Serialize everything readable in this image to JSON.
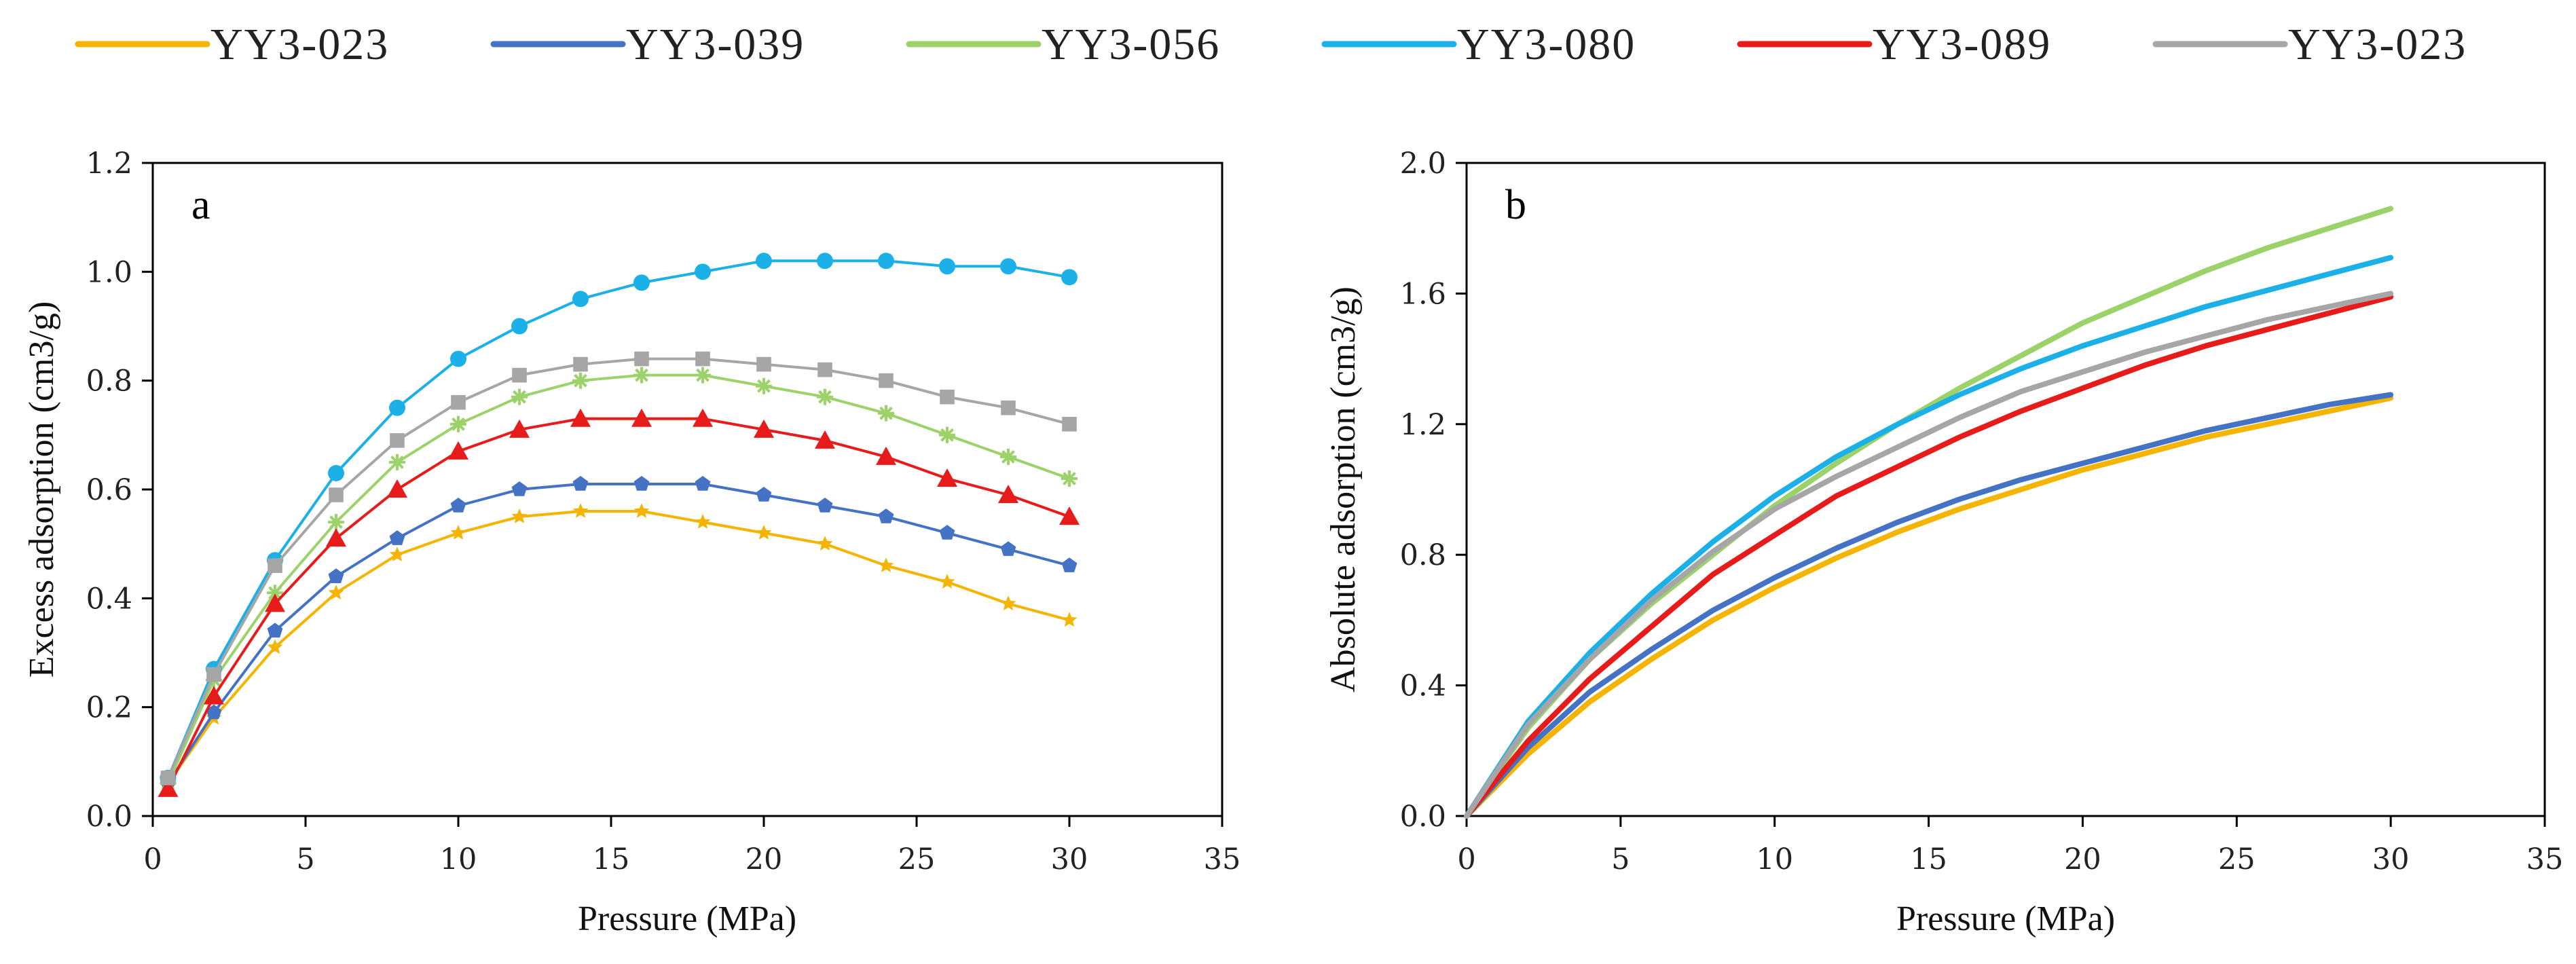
{
  "chart_data": {
    "legend": [
      {
        "name": "YY3-023",
        "color": "#F4B400"
      },
      {
        "name": "YY3-039",
        "color": "#4472C4"
      },
      {
        "name": "YY3-056",
        "color": "#9BD36A"
      },
      {
        "name": "YY3-080",
        "color": "#1CB0E8"
      },
      {
        "name": "YY3-089",
        "color": "#E81B1B"
      },
      {
        "name": "YY3-023",
        "color": "#A6A6A6"
      }
    ],
    "panels": [
      {
        "id": "a",
        "letter": "a",
        "type": "line",
        "xlabel": "Pressure (MPa)",
        "ylabel": "Excess adsorption (cm3/g)",
        "xlim": [
          0,
          35
        ],
        "ylim": [
          0,
          1.2
        ],
        "xticks": [
          "0",
          "5",
          "10",
          "15",
          "20",
          "25",
          "30",
          "35"
        ],
        "yticks": [
          "0.0",
          "0.2",
          "0.4",
          "0.6",
          "0.8",
          "1.0",
          "1.2"
        ],
        "x": [
          0.5,
          2,
          4,
          6,
          8,
          10,
          12,
          14,
          16,
          18,
          20,
          22,
          24,
          26,
          28,
          30
        ],
        "series": [
          {
            "name": "YY3-023",
            "color": "#F4B400",
            "marker": "star",
            "values": [
              0.06,
              0.18,
              0.31,
              0.41,
              0.48,
              0.52,
              0.55,
              0.56,
              0.56,
              0.54,
              0.52,
              0.5,
              0.46,
              0.43,
              0.39,
              0.36
            ]
          },
          {
            "name": "YY3-039",
            "color": "#4472C4",
            "marker": "pentagon",
            "values": [
              0.06,
              0.19,
              0.34,
              0.44,
              0.51,
              0.57,
              0.6,
              0.61,
              0.61,
              0.61,
              0.59,
              0.57,
              0.55,
              0.52,
              0.49,
              0.46
            ]
          },
          {
            "name": "YY3-056",
            "color": "#9BD36A",
            "marker": "asterisk",
            "values": [
              0.06,
              0.25,
              0.41,
              0.54,
              0.65,
              0.72,
              0.77,
              0.8,
              0.81,
              0.81,
              0.79,
              0.77,
              0.74,
              0.7,
              0.66,
              0.62
            ]
          },
          {
            "name": "YY3-080",
            "color": "#1CB0E8",
            "marker": "circle",
            "values": [
              0.07,
              0.27,
              0.47,
              0.63,
              0.75,
              0.84,
              0.9,
              0.95,
              0.98,
              1.0,
              1.02,
              1.02,
              1.02,
              1.01,
              1.01,
              0.99
            ]
          },
          {
            "name": "YY3-089",
            "color": "#E81B1B",
            "marker": "triangle",
            "values": [
              0.05,
              0.22,
              0.39,
              0.51,
              0.6,
              0.67,
              0.71,
              0.73,
              0.73,
              0.73,
              0.71,
              0.69,
              0.66,
              0.62,
              0.59,
              0.55
            ]
          },
          {
            "name": "YY3-023",
            "color": "#A6A6A6",
            "marker": "square",
            "values": [
              0.07,
              0.26,
              0.46,
              0.59,
              0.69,
              0.76,
              0.81,
              0.83,
              0.84,
              0.84,
              0.83,
              0.82,
              0.8,
              0.77,
              0.75,
              0.72
            ]
          }
        ]
      },
      {
        "id": "b",
        "letter": "b",
        "type": "line",
        "xlabel": "Pressure (MPa)",
        "ylabel": "Absolute adsorption (cm3/g)",
        "xlim": [
          0,
          35
        ],
        "ylim": [
          0,
          2.0
        ],
        "xticks": [
          "0",
          "5",
          "10",
          "15",
          "20",
          "25",
          "30",
          "35"
        ],
        "yticks": [
          "0.0",
          "0.4",
          "0.8",
          "1.2",
          "1.6",
          "2.0"
        ],
        "x": [
          0,
          2,
          4,
          6,
          8,
          10,
          12,
          14,
          16,
          18,
          20,
          22,
          24,
          26,
          28,
          30
        ],
        "series": [
          {
            "name": "YY3-023",
            "color": "#F4B400",
            "marker": "none",
            "values": [
              0,
              0.19,
              0.35,
              0.48,
              0.6,
              0.7,
              0.79,
              0.87,
              0.94,
              1.0,
              1.06,
              1.11,
              1.16,
              1.2,
              1.24,
              1.28
            ]
          },
          {
            "name": "YY3-039",
            "color": "#4472C4",
            "marker": "none",
            "values": [
              0,
              0.21,
              0.38,
              0.51,
              0.63,
              0.73,
              0.82,
              0.9,
              0.97,
              1.03,
              1.08,
              1.13,
              1.18,
              1.22,
              1.26,
              1.29
            ]
          },
          {
            "name": "YY3-056",
            "color": "#9BD36A",
            "marker": "none",
            "values": [
              0,
              0.27,
              0.48,
              0.65,
              0.8,
              0.95,
              1.08,
              1.2,
              1.31,
              1.41,
              1.51,
              1.59,
              1.67,
              1.74,
              1.8,
              1.86
            ]
          },
          {
            "name": "YY3-080",
            "color": "#1CB0E8",
            "marker": "none",
            "values": [
              0,
              0.29,
              0.5,
              0.68,
              0.84,
              0.98,
              1.1,
              1.2,
              1.29,
              1.37,
              1.44,
              1.5,
              1.56,
              1.61,
              1.66,
              1.71
            ]
          },
          {
            "name": "YY3-089",
            "color": "#E81B1B",
            "marker": "none",
            "values": [
              0,
              0.23,
              0.42,
              0.58,
              0.74,
              0.86,
              0.98,
              1.07,
              1.16,
              1.24,
              1.31,
              1.38,
              1.44,
              1.49,
              1.54,
              1.59
            ]
          },
          {
            "name": "YY3-023",
            "color": "#A6A6A6",
            "marker": "none",
            "values": [
              0,
              0.28,
              0.48,
              0.66,
              0.81,
              0.94,
              1.04,
              1.13,
              1.22,
              1.3,
              1.36,
              1.42,
              1.47,
              1.52,
              1.56,
              1.6
            ]
          }
        ]
      }
    ]
  }
}
